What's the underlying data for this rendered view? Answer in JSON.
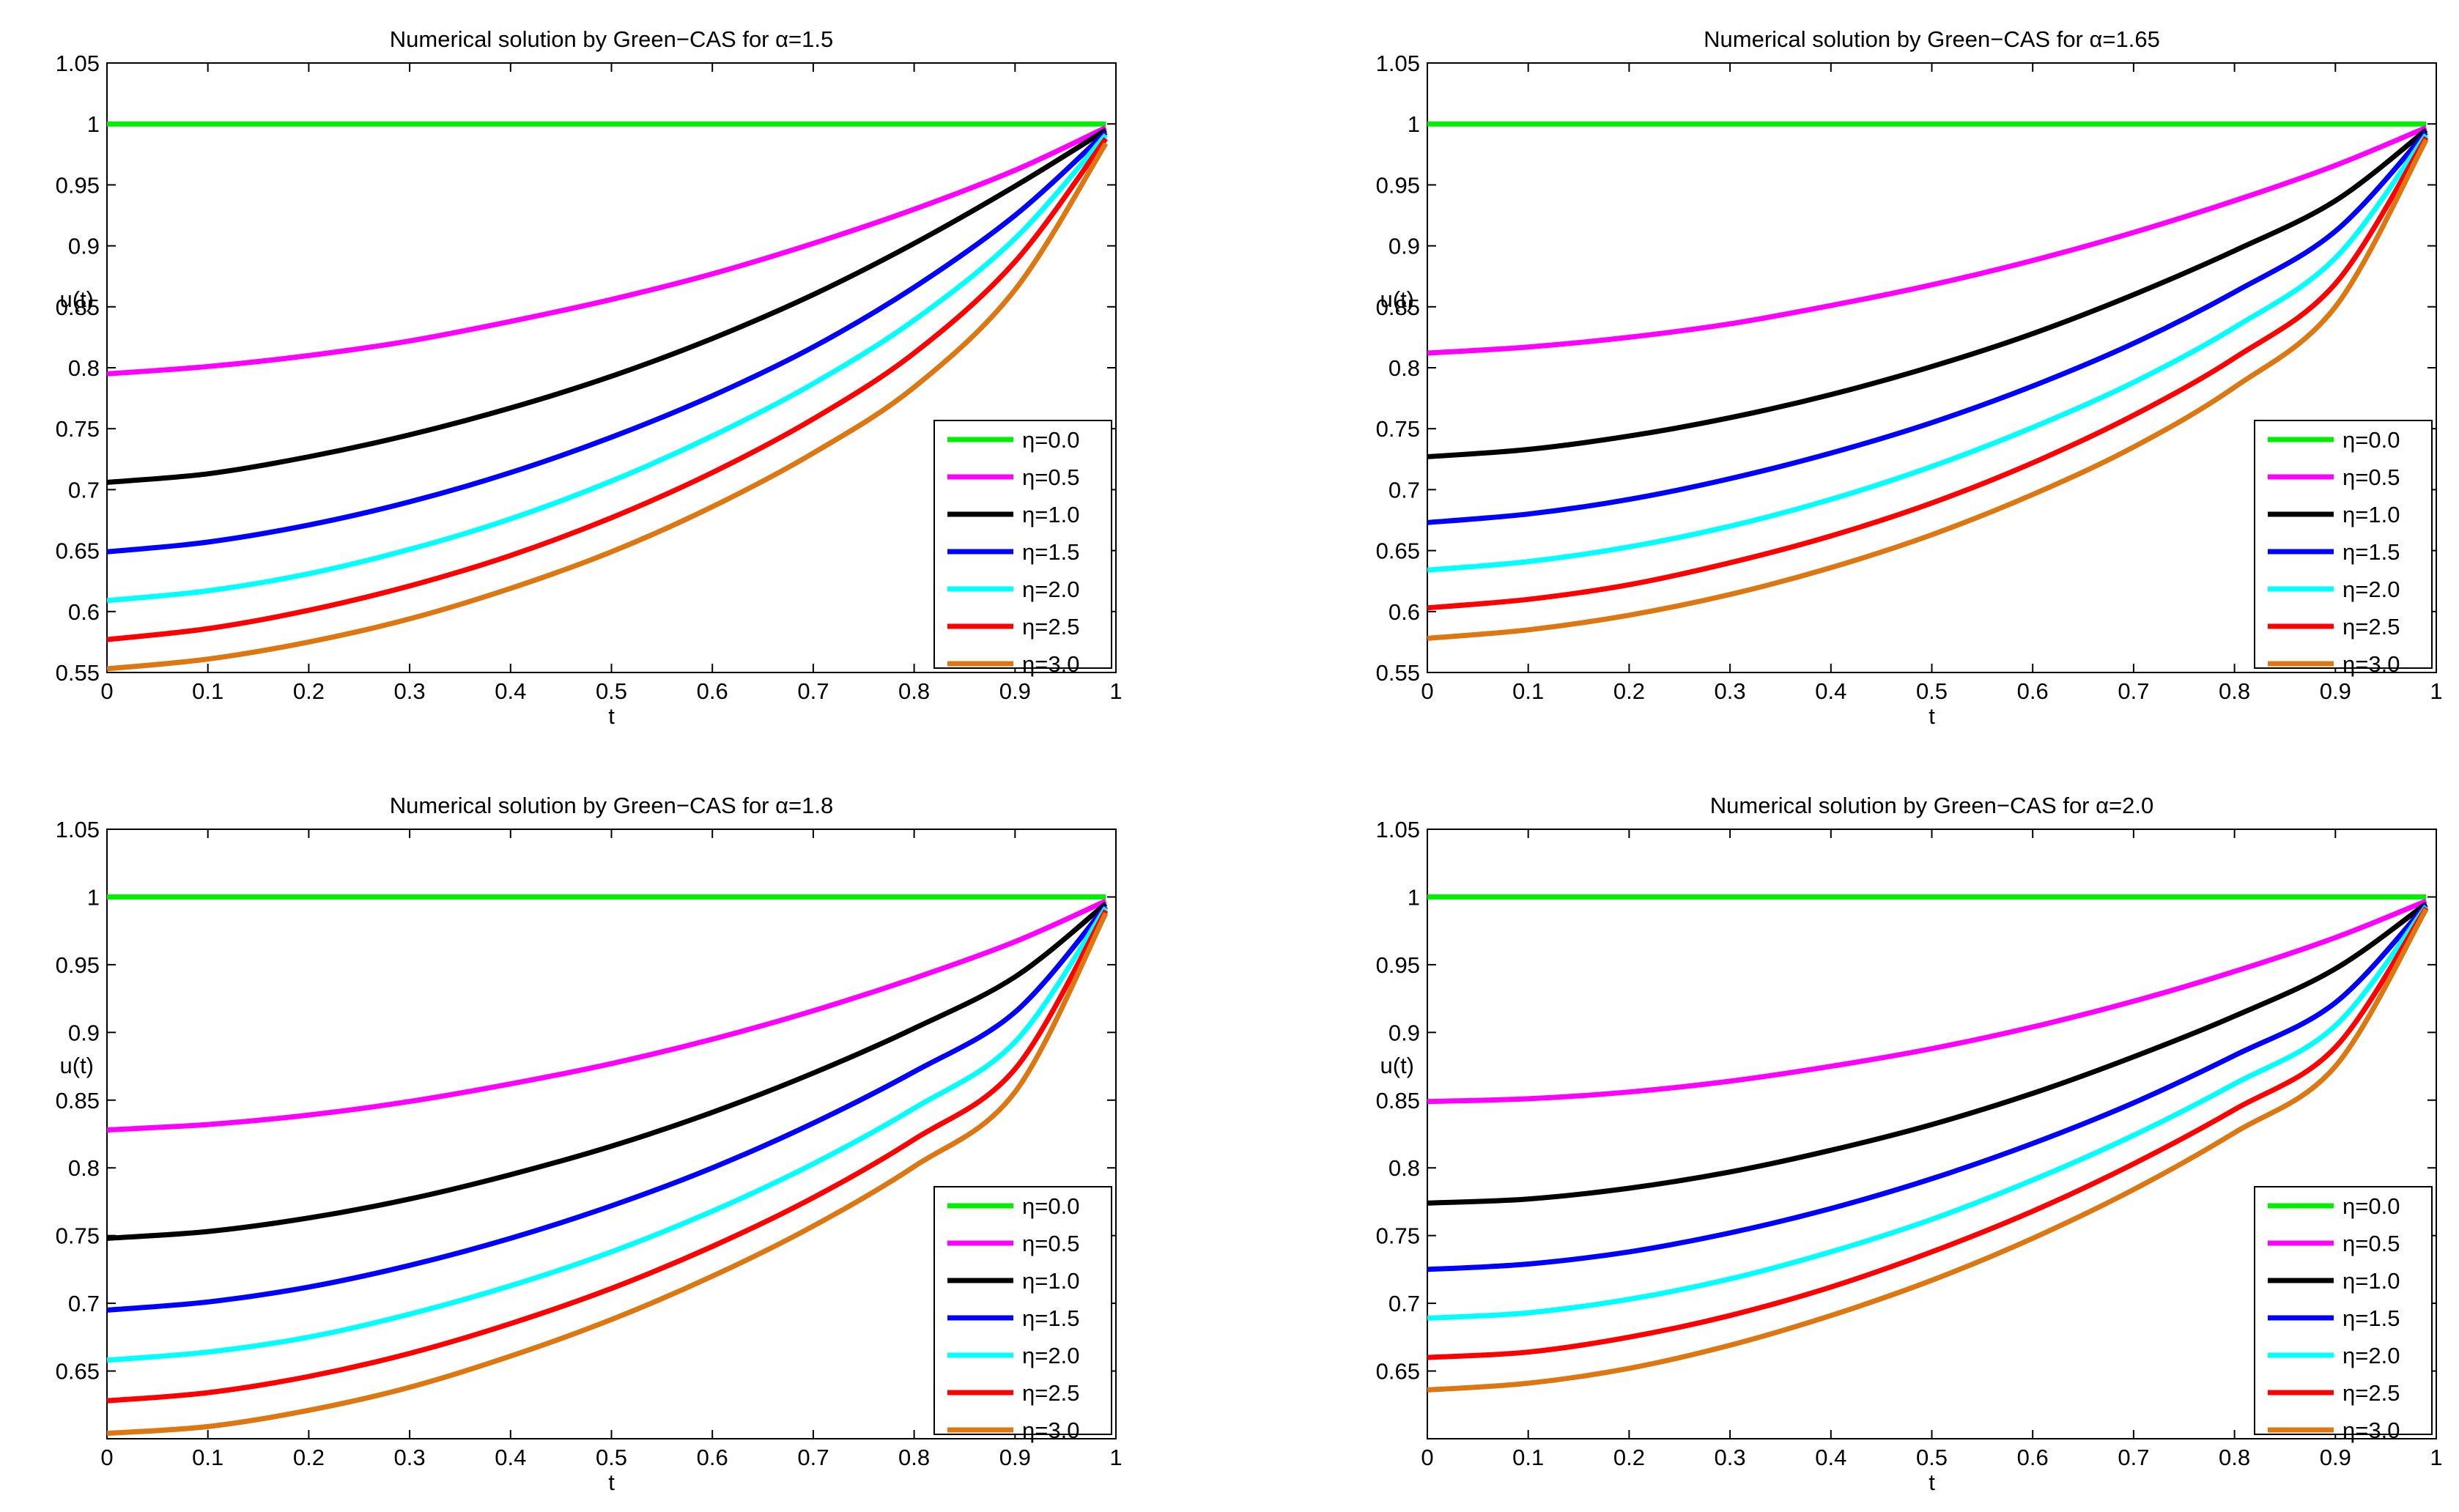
{
  "figure": {
    "x_tick_labels": [
      "0",
      "0.1",
      "0.2",
      "0.3",
      "0.4",
      "0.5",
      "0.6",
      "0.7",
      "0.8",
      "0.9",
      "1"
    ]
  },
  "chart_data": [
    {
      "type": "line",
      "title": "Numerical solution by Green−CAS for α=1.5",
      "xlabel": "t",
      "ylabel": "u(t)",
      "xlim": [
        0,
        1
      ],
      "ylim": [
        0.55,
        1.05
      ],
      "y_ticks": [
        0.55,
        0.6,
        0.65,
        0.7,
        0.75,
        0.8,
        0.85,
        0.9,
        0.95,
        1,
        1.05
      ],
      "y_tick_labels": [
        "0.55",
        "0.6",
        "0.65",
        "0.7",
        "0.75",
        "0.8",
        "0.85",
        "0.9",
        "0.95",
        "1",
        "1.05"
      ],
      "x": [
        0,
        0.1,
        0.2,
        0.3,
        0.4,
        0.5,
        0.6,
        0.7,
        0.8,
        0.9,
        0.99
      ],
      "legend_location": "lower-right",
      "series": [
        {
          "name": "η=0.0",
          "color": "#00ee00",
          "values": [
            1,
            1,
            1,
            1,
            1,
            1,
            1,
            1,
            1,
            1,
            1
          ]
        },
        {
          "name": "η=0.5",
          "color": "#ff00ff",
          "values": [
            0.795,
            0.801,
            0.81,
            0.822,
            0.838,
            0.856,
            0.877,
            0.902,
            0.93,
            0.962,
            0.997
          ]
        },
        {
          "name": "η=1.0",
          "color": "#000000",
          "values": [
            0.706,
            0.713,
            0.727,
            0.745,
            0.767,
            0.793,
            0.824,
            0.86,
            0.902,
            0.949,
            0.995
          ]
        },
        {
          "name": "η=1.5",
          "color": "#0000ff",
          "values": [
            0.649,
            0.657,
            0.671,
            0.69,
            0.714,
            0.743,
            0.777,
            0.817,
            0.866,
            0.925,
            0.993
          ]
        },
        {
          "name": "η=2.0",
          "color": "#00ffff",
          "values": [
            0.609,
            0.617,
            0.631,
            0.651,
            0.676,
            0.707,
            0.744,
            0.787,
            0.839,
            0.906,
            0.991
          ]
        },
        {
          "name": "η=2.5",
          "color": "#ff0000",
          "values": [
            0.577,
            0.586,
            0.601,
            0.621,
            0.646,
            0.677,
            0.714,
            0.758,
            0.812,
            0.887,
            0.988
          ]
        },
        {
          "name": "η=3.0",
          "color": "#dd7711",
          "values": [
            0.553,
            0.561,
            0.575,
            0.594,
            0.619,
            0.649,
            0.686,
            0.73,
            0.784,
            0.864,
            0.984
          ]
        }
      ]
    },
    {
      "type": "line",
      "title": "Numerical solution by Green−CAS for α=1.65",
      "xlabel": "t",
      "ylabel": "u(t)",
      "xlim": [
        0,
        1
      ],
      "ylim": [
        0.55,
        1.05
      ],
      "y_ticks": [
        0.55,
        0.6,
        0.65,
        0.7,
        0.75,
        0.8,
        0.85,
        0.9,
        0.95,
        1,
        1.05
      ],
      "y_tick_labels": [
        "0.55",
        "0.6",
        "0.65",
        "0.7",
        "0.75",
        "0.8",
        "0.85",
        "0.9",
        "0.95",
        "1",
        "1.05"
      ],
      "x": [
        0,
        0.1,
        0.2,
        0.3,
        0.4,
        0.5,
        0.6,
        0.7,
        0.8,
        0.9,
        0.99
      ],
      "legend_location": "lower-right",
      "series": [
        {
          "name": "η=0.0",
          "color": "#00ee00",
          "values": [
            1,
            1,
            1,
            1,
            1,
            1,
            1,
            1,
            1,
            1,
            1
          ]
        },
        {
          "name": "η=0.5",
          "color": "#ff00ff",
          "values": [
            0.812,
            0.817,
            0.825,
            0.836,
            0.851,
            0.868,
            0.888,
            0.911,
            0.937,
            0.966,
            0.997
          ]
        },
        {
          "name": "η=1.0",
          "color": "#000000",
          "values": [
            0.727,
            0.733,
            0.744,
            0.759,
            0.778,
            0.801,
            0.828,
            0.86,
            0.896,
            0.937,
            0.995
          ]
        },
        {
          "name": "η=1.5",
          "color": "#0000ff",
          "values": [
            0.673,
            0.68,
            0.692,
            0.709,
            0.73,
            0.755,
            0.785,
            0.82,
            0.862,
            0.912,
            0.993
          ]
        },
        {
          "name": "η=2.0",
          "color": "#00ffff",
          "values": [
            0.634,
            0.641,
            0.653,
            0.67,
            0.692,
            0.719,
            0.751,
            0.788,
            0.833,
            0.89,
            0.991
          ]
        },
        {
          "name": "η=2.5",
          "color": "#ff0000",
          "values": [
            0.603,
            0.61,
            0.622,
            0.64,
            0.662,
            0.689,
            0.722,
            0.761,
            0.808,
            0.869,
            0.989
          ]
        },
        {
          "name": "η=3.0",
          "color": "#dd7711",
          "values": [
            0.578,
            0.585,
            0.597,
            0.614,
            0.636,
            0.663,
            0.696,
            0.735,
            0.784,
            0.85,
            0.987
          ]
        }
      ]
    },
    {
      "type": "line",
      "title": "Numerical solution by Green−CAS for α=1.8",
      "xlabel": "t",
      "ylabel": "u(t)",
      "xlim": [
        0,
        1
      ],
      "ylim": [
        0.6,
        1.05
      ],
      "y_ticks": [
        0.65,
        0.7,
        0.75,
        0.8,
        0.85,
        0.9,
        0.95,
        1,
        1.05
      ],
      "y_tick_labels": [
        "0.65",
        "0.7",
        "0.75",
        "0.8",
        "0.85",
        "0.9",
        "0.95",
        "1",
        "1.05"
      ],
      "x": [
        0,
        0.1,
        0.2,
        0.3,
        0.4,
        0.5,
        0.6,
        0.7,
        0.8,
        0.9,
        0.99
      ],
      "legend_location": "lower-right",
      "series": [
        {
          "name": "η=0.0",
          "color": "#00ee00",
          "values": [
            1,
            1,
            1,
            1,
            1,
            1,
            1,
            1,
            1,
            1,
            1
          ]
        },
        {
          "name": "η=0.5",
          "color": "#ff00ff",
          "values": [
            0.828,
            0.832,
            0.839,
            0.849,
            0.862,
            0.877,
            0.895,
            0.916,
            0.94,
            0.967,
            0.997
          ]
        },
        {
          "name": "η=1.0",
          "color": "#000000",
          "values": [
            0.748,
            0.753,
            0.763,
            0.777,
            0.795,
            0.816,
            0.841,
            0.87,
            0.903,
            0.941,
            0.995
          ]
        },
        {
          "name": "η=1.5",
          "color": "#0000ff",
          "values": [
            0.695,
            0.701,
            0.712,
            0.728,
            0.748,
            0.772,
            0.8,
            0.833,
            0.871,
            0.915,
            0.993
          ]
        },
        {
          "name": "η=2.0",
          "color": "#00ffff",
          "values": [
            0.658,
            0.664,
            0.675,
            0.692,
            0.713,
            0.738,
            0.768,
            0.803,
            0.844,
            0.893,
            0.992
          ]
        },
        {
          "name": "η=2.5",
          "color": "#ff0000",
          "values": [
            0.628,
            0.634,
            0.646,
            0.663,
            0.685,
            0.711,
            0.742,
            0.778,
            0.821,
            0.873,
            0.99
          ]
        },
        {
          "name": "η=3.0",
          "color": "#dd7711",
          "values": [
            0.604,
            0.609,
            0.621,
            0.638,
            0.661,
            0.688,
            0.72,
            0.757,
            0.801,
            0.856,
            0.988
          ]
        }
      ]
    },
    {
      "type": "line",
      "title": "Numerical solution by Green−CAS for α=2.0",
      "xlabel": "t",
      "ylabel": "u(t)",
      "xlim": [
        0,
        1
      ],
      "ylim": [
        0.6,
        1.05
      ],
      "y_ticks": [
        0.65,
        0.7,
        0.75,
        0.8,
        0.85,
        0.9,
        0.95,
        1,
        1.05
      ],
      "y_tick_labels": [
        "0.65",
        "0.7",
        "0.75",
        "0.8",
        "0.85",
        "0.9",
        "0.95",
        "1",
        "1.05"
      ],
      "x": [
        0,
        0.1,
        0.2,
        0.3,
        0.4,
        0.5,
        0.6,
        0.7,
        0.8,
        0.9,
        0.99
      ],
      "legend_location": "lower-right",
      "series": [
        {
          "name": "η=0.0",
          "color": "#00ee00",
          "values": [
            1,
            1,
            1,
            1,
            1,
            1,
            1,
            1,
            1,
            1,
            1
          ]
        },
        {
          "name": "η=0.5",
          "color": "#ff00ff",
          "values": [
            0.849,
            0.851,
            0.856,
            0.864,
            0.875,
            0.888,
            0.904,
            0.923,
            0.945,
            0.97,
            0.997
          ]
        },
        {
          "name": "η=1.0",
          "color": "#000000",
          "values": [
            0.774,
            0.777,
            0.785,
            0.797,
            0.813,
            0.832,
            0.855,
            0.882,
            0.912,
            0.947,
            0.995
          ]
        },
        {
          "name": "η=1.5",
          "color": "#0000ff",
          "values": [
            0.725,
            0.729,
            0.738,
            0.752,
            0.77,
            0.792,
            0.818,
            0.848,
            0.883,
            0.922,
            0.994
          ]
        },
        {
          "name": "η=2.0",
          "color": "#00ffff",
          "values": [
            0.689,
            0.693,
            0.703,
            0.718,
            0.738,
            0.762,
            0.791,
            0.824,
            0.862,
            0.905,
            0.993
          ]
        },
        {
          "name": "η=2.5",
          "color": "#ff0000",
          "values": [
            0.66,
            0.664,
            0.675,
            0.691,
            0.712,
            0.738,
            0.768,
            0.803,
            0.843,
            0.889,
            0.992
          ]
        },
        {
          "name": "η=3.0",
          "color": "#dd7711",
          "values": [
            0.636,
            0.641,
            0.652,
            0.669,
            0.691,
            0.717,
            0.748,
            0.784,
            0.826,
            0.875,
            0.991
          ]
        }
      ]
    }
  ]
}
